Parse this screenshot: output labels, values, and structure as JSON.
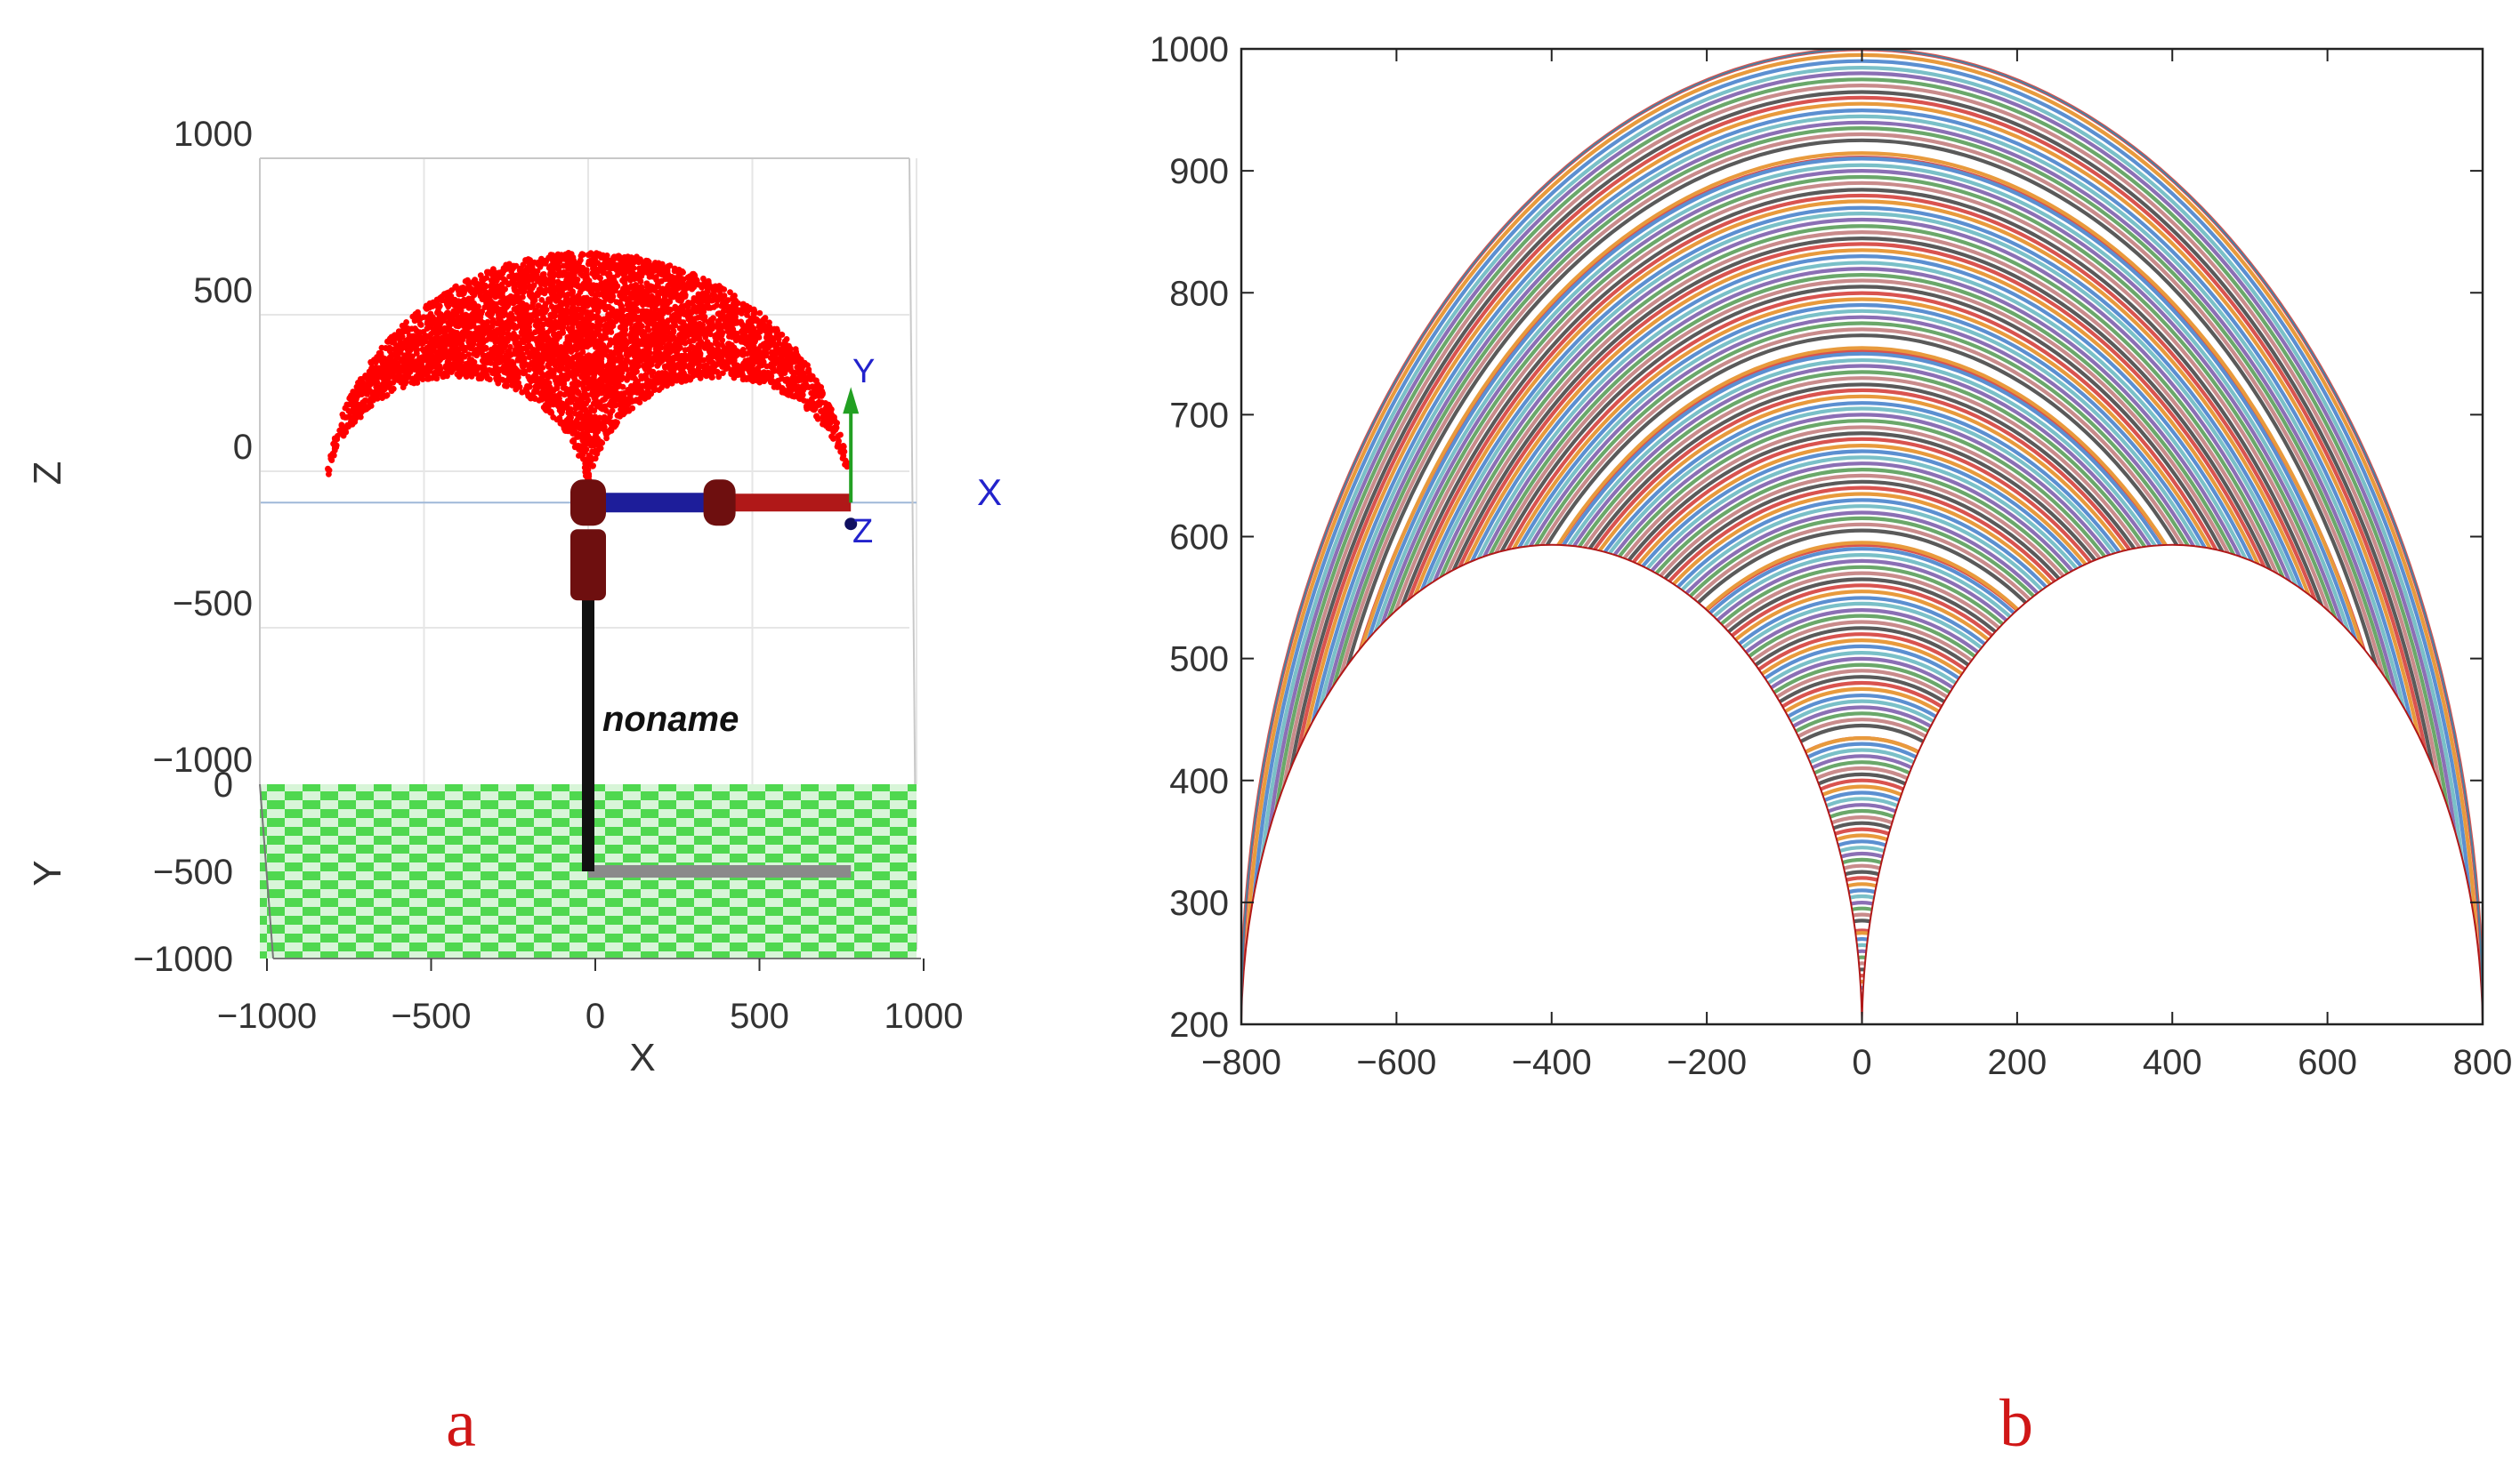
{
  "figure": {
    "panel_labels": [
      "a",
      "b"
    ],
    "colors": {
      "workspace_points": "#ff0000",
      "floor_checker_a": "#4fd84f",
      "floor_checker_b": "#d8f5d8",
      "link_dark_red": "#6e0f0f",
      "link_red": "#b01818",
      "link_blue": "#1d1d9a",
      "link_black": "#111111",
      "link_gray": "#8a8a8a",
      "axis_y_green": "#22a022",
      "axis_text_blue": "#2222cc",
      "panel_label_red": "#d01616",
      "grid": "#e6e6e6"
    }
  },
  "chart_data": [
    {
      "panel": "a",
      "type": "scatter",
      "view": "3d-front",
      "title": "",
      "xlabel": "X",
      "ylabel": "Y",
      "zlabel": "Z",
      "xlim": [
        -1000,
        1000
      ],
      "ylim": [
        -1000,
        0
      ],
      "zlim": [
        -1000,
        1000
      ],
      "x_ticks": [
        "−1000",
        "−500",
        "0",
        "500",
        "1000"
      ],
      "y_ticks": [
        "0",
        "−500",
        "−1000"
      ],
      "z_ticks": [
        "1000",
        "500",
        "0",
        "−500",
        "−1000"
      ],
      "robot_name": "noname",
      "base_frame_labels": {
        "x": "X",
        "y": "Y",
        "z": "Z"
      },
      "workspace": {
        "description_shape": "two-arc crescent",
        "outer_arc": {
          "cx": 0,
          "cz": -100,
          "r": 800
        },
        "inner_arcs": [
          {
            "cx": -400,
            "cz": -100,
            "r": 400
          },
          {
            "cx": 400,
            "cz": -100,
            "r": 400
          }
        ]
      },
      "robot_links": {
        "base_x": 0,
        "base_y": -500,
        "shoulder_z": -100,
        "arm_length": 800
      }
    },
    {
      "panel": "b",
      "type": "line",
      "title": "",
      "xlabel": "",
      "ylabel": "",
      "xlim": [
        -800,
        800
      ],
      "ylim": [
        200,
        1000
      ],
      "x_ticks": [
        "−800",
        "−600",
        "−400",
        "−200",
        "0",
        "200",
        "400",
        "600",
        "800"
      ],
      "y_ticks": [
        "1000",
        "900",
        "800",
        "700",
        "600",
        "500",
        "400",
        "300",
        "200"
      ],
      "envelope": {
        "outer": {
          "cx": 0,
          "cy": 200,
          "r": 800
        },
        "inner_left": {
          "cx": -400,
          "cy": 200,
          "r": 400
        },
        "inner_right": {
          "cx": 400,
          "cy": 200,
          "r": 400
        }
      },
      "series_colors": [
        "#d9534f",
        "#e89a3c",
        "#5b8fd1",
        "#7ac0c8",
        "#8b6fb5",
        "#6aa86a",
        "#c98b8b",
        "#5a5a5a"
      ]
    }
  ]
}
